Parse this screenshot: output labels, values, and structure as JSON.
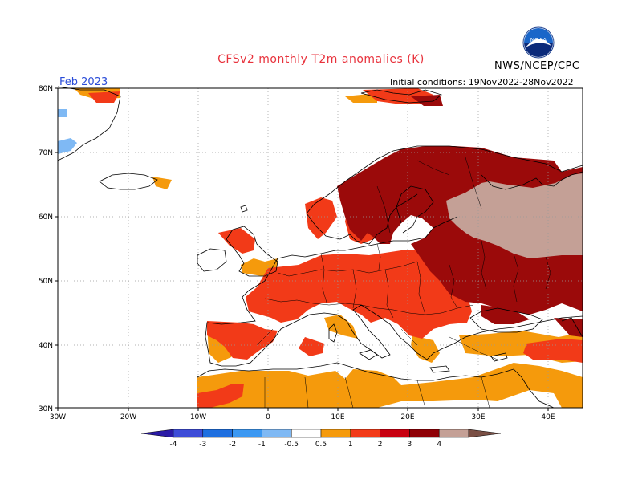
{
  "header": {
    "title": "CFSv2 monthly T2m anomalies (K)",
    "month": "Feb 2023",
    "initial_conditions": "Initial conditions: 19Nov2022-28Nov2022",
    "agency": "NWS/NCEP/CPC",
    "logo_text": "NOAA"
  },
  "axes": {
    "lat_labels": [
      "80N",
      "70N",
      "60N",
      "50N",
      "40N",
      "30N"
    ],
    "lon_labels": [
      "30W",
      "20W",
      "10W",
      "0",
      "10E",
      "20E",
      "30E",
      "40E"
    ]
  },
  "colorbar": {
    "labels": [
      "-4",
      "-3",
      "-2",
      "-1",
      "-0.5",
      "0.5",
      "1",
      "2",
      "3",
      "4"
    ],
    "colors": [
      "#2a1aa6",
      "#3d4cd8",
      "#1e6fe0",
      "#3b98f2",
      "#7fb9f4",
      "#ffffff",
      "#f59a0c",
      "#f23a18",
      "#c80010",
      "#8f0006",
      "#c4a096",
      "#7a4f44"
    ]
  },
  "palette": {
    "land_outline": "#000000",
    "grid": "#999999",
    "anom_05_1": "#f59a0c",
    "anom_1_2": "#f23a18",
    "anom_2_3": "#9b0a0a",
    "anom_3_4": "#c4a096",
    "anom_neg": "#7fb9f4"
  }
}
